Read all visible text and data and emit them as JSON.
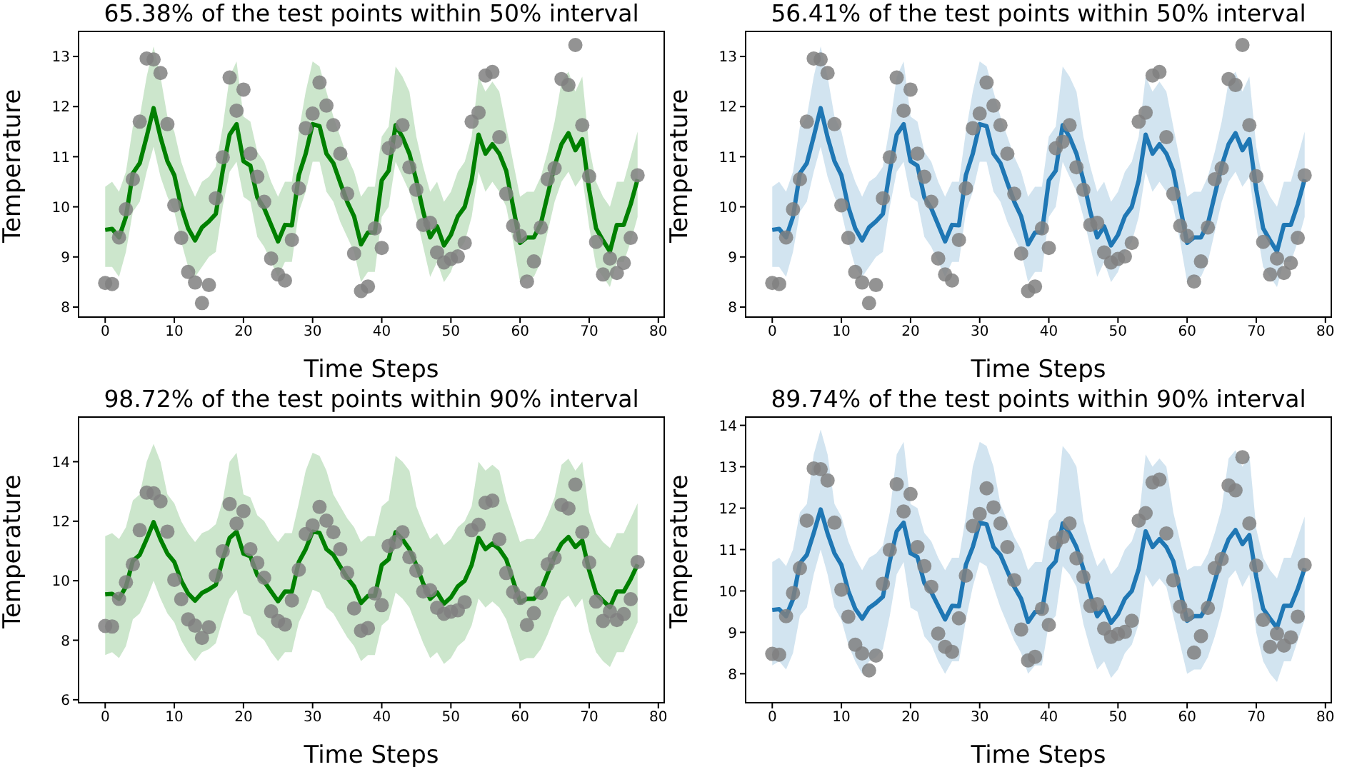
{
  "chart_data": [
    {
      "type": "line",
      "title": "65.38% of the test points within 50% interval",
      "xlabel": "Time Steps",
      "ylabel": "Temperature",
      "x": [
        0,
        1,
        2,
        3,
        4,
        5,
        6,
        7,
        8,
        9,
        10,
        11,
        12,
        13,
        14,
        15,
        16,
        17,
        18,
        19,
        20,
        21,
        22,
        23,
        24,
        25,
        26,
        27,
        28,
        29,
        30,
        31,
        32,
        33,
        34,
        35,
        36,
        37,
        38,
        39,
        40,
        41,
        42,
        43,
        44,
        45,
        46,
        47,
        48,
        49,
        50,
        51,
        52,
        53,
        54,
        55,
        56,
        57,
        58,
        59,
        60,
        61,
        62,
        63,
        64,
        65,
        66,
        67,
        68,
        69,
        70,
        71,
        72,
        73,
        74,
        75,
        76,
        77
      ],
      "xlim": [
        -3.85,
        80.85
      ],
      "xticks": [
        0,
        10,
        20,
        30,
        40,
        50,
        60,
        70,
        80
      ],
      "ylim": [
        7.8,
        13.5
      ],
      "yticks": [
        8,
        9,
        10,
        11,
        12,
        13
      ],
      "series": [
        {
          "color": "#008000",
          "values": [
            9.54,
            9.56,
            9.39,
            9.8,
            10.67,
            10.87,
            11.4,
            11.97,
            11.39,
            10.91,
            10.63,
            10.0,
            9.57,
            9.33,
            9.59,
            9.71,
            9.86,
            10.72,
            11.44,
            11.65,
            10.91,
            10.82,
            10.19,
            9.97,
            9.64,
            9.31,
            9.64,
            9.63,
            10.63,
            11.06,
            11.65,
            11.61,
            11.06,
            10.87,
            10.48,
            10.1,
            9.81,
            9.25,
            9.49,
            9.49,
            10.53,
            10.72,
            11.63,
            11.39,
            11.06,
            10.53,
            9.9,
            9.39,
            9.61,
            9.23,
            9.44,
            9.81,
            10.0,
            10.53,
            11.44,
            11.06,
            11.25,
            11.06,
            10.72,
            10.0,
            9.28,
            9.39,
            9.39,
            9.66,
            10.24,
            10.82,
            11.25,
            11.47,
            11.13,
            11.35,
            10.34,
            9.57,
            9.33,
            9.11,
            9.64,
            9.64,
            10.05,
            10.55
          ],
          "lower": [
            8.8,
            8.8,
            8.6,
            9.1,
            9.9,
            10.1,
            10.7,
            11.2,
            10.6,
            10.2,
            9.9,
            9.3,
            8.8,
            8.6,
            8.8,
            9.0,
            9.1,
            10.0,
            10.7,
            10.9,
            10.2,
            10.1,
            9.4,
            9.2,
            8.9,
            8.6,
            8.9,
            8.9,
            9.9,
            10.3,
            10.9,
            10.9,
            10.3,
            10.1,
            9.7,
            9.4,
            9.1,
            8.5,
            8.7,
            8.7,
            9.8,
            10.0,
            10.9,
            10.6,
            10.3,
            9.8,
            9.2,
            8.6,
            8.9,
            8.5,
            8.7,
            9.1,
            9.3,
            9.8,
            10.7,
            10.3,
            10.5,
            10.3,
            10.0,
            9.3,
            8.5,
            8.6,
            8.6,
            8.9,
            9.5,
            10.1,
            10.5,
            10.7,
            10.4,
            10.6,
            9.6,
            8.8,
            8.6,
            8.4,
            8.9,
            8.9,
            9.3,
            9.8
          ],
          "upper": [
            10.4,
            10.5,
            10.3,
            10.7,
            11.6,
            11.8,
            12.6,
            13.2,
            12.6,
            11.8,
            11.5,
            10.9,
            10.5,
            10.2,
            10.5,
            10.6,
            10.8,
            11.6,
            12.6,
            12.9,
            11.8,
            11.7,
            11.1,
            10.9,
            10.5,
            10.2,
            10.5,
            10.5,
            11.5,
            12.3,
            12.9,
            12.8,
            12.3,
            11.8,
            11.4,
            11.0,
            10.7,
            10.2,
            10.4,
            10.4,
            11.4,
            11.6,
            12.8,
            12.6,
            12.3,
            11.4,
            10.8,
            10.3,
            10.5,
            10.1,
            10.3,
            10.7,
            10.9,
            11.4,
            12.6,
            12.3,
            12.5,
            12.3,
            11.6,
            10.9,
            10.2,
            10.3,
            10.3,
            10.6,
            11.1,
            11.7,
            12.5,
            12.7,
            12.3,
            12.6,
            11.2,
            10.5,
            10.2,
            10.0,
            10.5,
            10.5,
            11.0,
            11.5
          ]
        },
        {
          "type": "scatter",
          "color": "#808080",
          "marker": "circle",
          "values": [
            8.48,
            8.46,
            9.39,
            9.95,
            10.55,
            11.7,
            12.96,
            12.94,
            12.67,
            11.65,
            10.03,
            9.38,
            8.7,
            8.49,
            8.08,
            8.44,
            10.17,
            10.99,
            12.58,
            11.92,
            12.34,
            11.06,
            10.6,
            10.1,
            8.97,
            8.65,
            8.53,
            9.34,
            10.37,
            11.57,
            11.86,
            12.48,
            12.02,
            11.63,
            11.06,
            10.26,
            9.07,
            8.32,
            8.41,
            9.57,
            9.18,
            11.17,
            11.3,
            11.63,
            10.79,
            10.34,
            9.64,
            9.68,
            9.09,
            8.89,
            8.96,
            9.01,
            9.28,
            11.7,
            11.88,
            12.62,
            12.69,
            11.39,
            10.26,
            9.62,
            9.42,
            8.51,
            8.91,
            9.59,
            10.55,
            10.77,
            12.55,
            12.43,
            13.23,
            11.63,
            10.61,
            9.3,
            8.65,
            8.97,
            8.68,
            8.88,
            9.38,
            10.63
          ]
        }
      ]
    },
    {
      "type": "line",
      "title": "56.41% of the test points within 50% interval",
      "xlabel": "Time Steps",
      "ylabel": "Temperature",
      "x": [
        0,
        1,
        2,
        3,
        4,
        5,
        6,
        7,
        8,
        9,
        10,
        11,
        12,
        13,
        14,
        15,
        16,
        17,
        18,
        19,
        20,
        21,
        22,
        23,
        24,
        25,
        26,
        27,
        28,
        29,
        30,
        31,
        32,
        33,
        34,
        35,
        36,
        37,
        38,
        39,
        40,
        41,
        42,
        43,
        44,
        45,
        46,
        47,
        48,
        49,
        50,
        51,
        52,
        53,
        54,
        55,
        56,
        57,
        58,
        59,
        60,
        61,
        62,
        63,
        64,
        65,
        66,
        67,
        68,
        69,
        70,
        71,
        72,
        73,
        74,
        75,
        76,
        77
      ],
      "xlim": [
        -3.85,
        80.85
      ],
      "xticks": [
        0,
        10,
        20,
        30,
        40,
        50,
        60,
        70,
        80
      ],
      "ylim": [
        7.8,
        13.5
      ],
      "yticks": [
        8,
        9,
        10,
        11,
        12,
        13
      ],
      "series": [
        {
          "color": "#1f77b4",
          "values": [
            9.54,
            9.56,
            9.39,
            9.8,
            10.67,
            10.87,
            11.4,
            11.97,
            11.39,
            10.91,
            10.63,
            10.0,
            9.57,
            9.33,
            9.59,
            9.71,
            9.86,
            10.72,
            11.44,
            11.65,
            10.91,
            10.82,
            10.19,
            9.97,
            9.64,
            9.31,
            9.64,
            9.63,
            10.63,
            11.06,
            11.65,
            11.61,
            11.06,
            10.87,
            10.48,
            10.1,
            9.81,
            9.25,
            9.49,
            9.49,
            10.53,
            10.72,
            11.63,
            11.39,
            11.06,
            10.53,
            9.9,
            9.39,
            9.61,
            9.23,
            9.44,
            9.81,
            10.0,
            10.53,
            11.44,
            11.06,
            11.25,
            11.06,
            10.72,
            10.0,
            9.28,
            9.39,
            9.39,
            9.66,
            10.24,
            10.82,
            11.25,
            11.47,
            11.13,
            11.35,
            10.34,
            9.57,
            9.33,
            9.11,
            9.64,
            9.64,
            10.05,
            10.55
          ],
          "lower": [
            8.8,
            8.8,
            8.6,
            9.1,
            9.9,
            10.1,
            10.7,
            11.2,
            10.6,
            10.2,
            9.9,
            9.3,
            8.8,
            8.6,
            8.8,
            9.0,
            9.1,
            10.0,
            10.7,
            10.9,
            10.2,
            10.1,
            9.4,
            9.2,
            8.9,
            8.6,
            8.9,
            8.9,
            9.9,
            10.3,
            10.9,
            10.9,
            10.3,
            10.1,
            9.7,
            9.4,
            9.1,
            8.5,
            8.7,
            8.7,
            9.8,
            10.0,
            10.9,
            10.6,
            10.3,
            9.8,
            9.2,
            8.6,
            8.9,
            8.5,
            8.7,
            9.1,
            9.3,
            9.8,
            10.7,
            10.3,
            10.5,
            10.3,
            10.0,
            9.3,
            8.5,
            8.6,
            8.6,
            8.9,
            9.5,
            10.1,
            10.5,
            10.7,
            10.4,
            10.6,
            9.6,
            8.8,
            8.6,
            8.4,
            8.9,
            8.9,
            9.3,
            9.8
          ],
          "upper": [
            10.4,
            10.5,
            10.3,
            10.7,
            11.6,
            11.8,
            12.6,
            13.2,
            12.6,
            11.8,
            11.5,
            10.9,
            10.5,
            10.2,
            10.5,
            10.6,
            10.8,
            11.6,
            12.6,
            12.9,
            11.8,
            11.7,
            11.1,
            10.9,
            10.5,
            10.2,
            10.5,
            10.5,
            11.5,
            12.3,
            12.9,
            12.8,
            12.3,
            11.8,
            11.4,
            11.0,
            10.7,
            10.2,
            10.4,
            10.4,
            11.4,
            11.6,
            12.8,
            12.6,
            12.3,
            11.4,
            10.8,
            10.3,
            10.5,
            10.1,
            10.3,
            10.7,
            10.9,
            11.4,
            12.6,
            12.3,
            12.5,
            12.3,
            11.6,
            10.9,
            10.2,
            10.3,
            10.3,
            10.6,
            11.1,
            11.7,
            12.5,
            12.7,
            12.3,
            12.6,
            11.2,
            10.5,
            10.2,
            10.0,
            10.5,
            10.5,
            11.0,
            11.5
          ]
        },
        {
          "type": "scatter",
          "color": "#808080",
          "marker": "circle",
          "values": [
            8.48,
            8.46,
            9.39,
            9.95,
            10.55,
            11.7,
            12.96,
            12.94,
            12.67,
            11.65,
            10.03,
            9.38,
            8.7,
            8.49,
            8.08,
            8.44,
            10.17,
            10.99,
            12.58,
            11.92,
            12.34,
            11.06,
            10.6,
            10.1,
            8.97,
            8.65,
            8.53,
            9.34,
            10.37,
            11.57,
            11.86,
            12.48,
            12.02,
            11.63,
            11.06,
            10.26,
            9.07,
            8.32,
            8.41,
            9.57,
            9.18,
            11.17,
            11.3,
            11.63,
            10.79,
            10.34,
            9.64,
            9.68,
            9.09,
            8.89,
            8.96,
            9.01,
            9.28,
            11.7,
            11.88,
            12.62,
            12.69,
            11.39,
            10.26,
            9.62,
            9.42,
            8.51,
            8.91,
            9.59,
            10.55,
            10.77,
            12.55,
            12.43,
            13.23,
            11.63,
            10.61,
            9.3,
            8.65,
            8.97,
            8.68,
            8.88,
            9.38,
            10.63
          ]
        }
      ]
    },
    {
      "type": "line",
      "title": "98.72% of the test points within 90% interval",
      "xlabel": "Time Steps",
      "ylabel": "Temperature",
      "x": [
        0,
        1,
        2,
        3,
        4,
        5,
        6,
        7,
        8,
        9,
        10,
        11,
        12,
        13,
        14,
        15,
        16,
        17,
        18,
        19,
        20,
        21,
        22,
        23,
        24,
        25,
        26,
        27,
        28,
        29,
        30,
        31,
        32,
        33,
        34,
        35,
        36,
        37,
        38,
        39,
        40,
        41,
        42,
        43,
        44,
        45,
        46,
        47,
        48,
        49,
        50,
        51,
        52,
        53,
        54,
        55,
        56,
        57,
        58,
        59,
        60,
        61,
        62,
        63,
        64,
        65,
        66,
        67,
        68,
        69,
        70,
        71,
        72,
        73,
        74,
        75,
        76,
        77
      ],
      "xlim": [
        -3.85,
        80.85
      ],
      "xticks": [
        0,
        10,
        20,
        30,
        40,
        50,
        60,
        70,
        80
      ],
      "ylim": [
        5.9,
        15.5
      ],
      "yticks": [
        6,
        8,
        10,
        12,
        14
      ],
      "series": [
        {
          "color": "#008000",
          "values": [
            9.54,
            9.56,
            9.39,
            9.8,
            10.67,
            10.87,
            11.4,
            11.97,
            11.39,
            10.91,
            10.63,
            10.0,
            9.57,
            9.33,
            9.59,
            9.71,
            9.86,
            10.72,
            11.44,
            11.65,
            10.91,
            10.82,
            10.19,
            9.97,
            9.64,
            9.31,
            9.64,
            9.63,
            10.63,
            11.06,
            11.65,
            11.61,
            11.06,
            10.87,
            10.48,
            10.1,
            9.81,
            9.25,
            9.49,
            9.49,
            10.53,
            10.72,
            11.63,
            11.39,
            11.06,
            10.53,
            9.9,
            9.39,
            9.61,
            9.23,
            9.44,
            9.81,
            10.0,
            10.53,
            11.44,
            11.06,
            11.25,
            11.06,
            10.72,
            10.0,
            9.28,
            9.39,
            9.39,
            9.66,
            10.24,
            10.82,
            11.25,
            11.47,
            11.13,
            11.35,
            10.34,
            9.57,
            9.33,
            9.11,
            9.64,
            9.64,
            10.05,
            10.55
          ],
          "lower": [
            7.5,
            7.6,
            7.4,
            7.8,
            8.7,
            8.9,
            9.4,
            10.0,
            9.4,
            8.9,
            8.6,
            8.0,
            7.6,
            7.3,
            7.6,
            7.7,
            7.9,
            8.7,
            9.4,
            9.7,
            8.9,
            8.8,
            8.2,
            8.0,
            7.6,
            7.3,
            7.6,
            7.6,
            8.6,
            9.1,
            9.7,
            9.6,
            9.1,
            8.9,
            8.5,
            8.1,
            7.8,
            7.3,
            7.5,
            7.5,
            8.5,
            8.7,
            9.6,
            9.4,
            9.1,
            8.5,
            7.9,
            7.4,
            7.6,
            7.2,
            7.4,
            7.8,
            8.0,
            8.5,
            9.4,
            9.1,
            9.3,
            9.1,
            8.7,
            8.0,
            7.3,
            7.4,
            7.4,
            7.7,
            8.2,
            8.8,
            9.3,
            9.5,
            9.1,
            9.4,
            8.3,
            7.6,
            7.3,
            7.1,
            7.6,
            7.6,
            8.1,
            8.6
          ],
          "upper": [
            11.5,
            11.6,
            11.4,
            11.8,
            12.7,
            12.9,
            14.0,
            14.6,
            14.0,
            12.9,
            12.6,
            12.0,
            11.6,
            11.3,
            11.6,
            11.7,
            11.9,
            12.7,
            14.0,
            14.3,
            12.9,
            12.8,
            12.2,
            12.0,
            11.6,
            11.3,
            11.6,
            11.6,
            12.6,
            13.7,
            14.3,
            14.2,
            13.7,
            12.9,
            12.5,
            12.1,
            11.8,
            11.3,
            11.5,
            11.5,
            12.5,
            12.7,
            14.2,
            14.0,
            13.7,
            12.5,
            11.9,
            11.4,
            11.6,
            11.2,
            11.4,
            11.8,
            12.0,
            12.5,
            14.0,
            13.7,
            13.9,
            13.7,
            12.7,
            12.0,
            11.3,
            11.4,
            11.4,
            11.7,
            12.2,
            12.8,
            13.9,
            14.1,
            13.7,
            14.0,
            12.3,
            11.6,
            11.3,
            11.1,
            11.6,
            11.6,
            12.1,
            12.6
          ]
        },
        {
          "type": "scatter",
          "color": "#808080",
          "marker": "circle",
          "values": [
            8.48,
            8.46,
            9.39,
            9.95,
            10.55,
            11.7,
            12.96,
            12.94,
            12.67,
            11.65,
            10.03,
            9.38,
            8.7,
            8.49,
            8.08,
            8.44,
            10.17,
            10.99,
            12.58,
            11.92,
            12.34,
            11.06,
            10.6,
            10.1,
            8.97,
            8.65,
            8.53,
            9.34,
            10.37,
            11.57,
            11.86,
            12.48,
            12.02,
            11.63,
            11.06,
            10.26,
            9.07,
            8.32,
            8.41,
            9.57,
            9.18,
            11.17,
            11.3,
            11.63,
            10.79,
            10.34,
            9.64,
            9.68,
            9.09,
            8.89,
            8.96,
            9.01,
            9.28,
            11.7,
            11.88,
            12.62,
            12.69,
            11.39,
            10.26,
            9.62,
            9.42,
            8.51,
            8.91,
            9.59,
            10.55,
            10.77,
            12.55,
            12.43,
            13.23,
            11.63,
            10.61,
            9.3,
            8.65,
            8.97,
            8.68,
            8.88,
            9.38,
            10.63
          ]
        }
      ]
    },
    {
      "type": "line",
      "title": "89.74% of the test points within 90% interval",
      "xlabel": "Time Steps",
      "ylabel": "Temperature",
      "x": [
        0,
        1,
        2,
        3,
        4,
        5,
        6,
        7,
        8,
        9,
        10,
        11,
        12,
        13,
        14,
        15,
        16,
        17,
        18,
        19,
        20,
        21,
        22,
        23,
        24,
        25,
        26,
        27,
        28,
        29,
        30,
        31,
        32,
        33,
        34,
        35,
        36,
        37,
        38,
        39,
        40,
        41,
        42,
        43,
        44,
        45,
        46,
        47,
        48,
        49,
        50,
        51,
        52,
        53,
        54,
        55,
        56,
        57,
        58,
        59,
        60,
        61,
        62,
        63,
        64,
        65,
        66,
        67,
        68,
        69,
        70,
        71,
        72,
        73,
        74,
        75,
        76,
        77
      ],
      "xlim": [
        -3.85,
        80.85
      ],
      "xticks": [
        0,
        10,
        20,
        30,
        40,
        50,
        60,
        70,
        80
      ],
      "ylim": [
        7.3,
        14.2
      ],
      "yticks": [
        8,
        9,
        10,
        11,
        12,
        13,
        14
      ],
      "series": [
        {
          "color": "#1f77b4",
          "values": [
            9.54,
            9.56,
            9.39,
            9.8,
            10.67,
            10.87,
            11.4,
            11.97,
            11.39,
            10.91,
            10.63,
            10.0,
            9.57,
            9.33,
            9.59,
            9.71,
            9.86,
            10.72,
            11.44,
            11.65,
            10.91,
            10.82,
            10.19,
            9.97,
            9.64,
            9.31,
            9.64,
            9.63,
            10.63,
            11.06,
            11.65,
            11.61,
            11.06,
            10.87,
            10.48,
            10.1,
            9.81,
            9.25,
            9.49,
            9.49,
            10.53,
            10.72,
            11.63,
            11.39,
            11.06,
            10.53,
            9.9,
            9.39,
            9.61,
            9.23,
            9.44,
            9.81,
            10.0,
            10.53,
            11.44,
            11.06,
            11.25,
            11.06,
            10.72,
            10.0,
            9.28,
            9.39,
            9.39,
            9.66,
            10.24,
            10.82,
            11.25,
            11.47,
            11.13,
            11.35,
            10.34,
            9.57,
            9.33,
            9.11,
            9.64,
            9.64,
            10.05,
            10.55
          ],
          "lower": [
            8.2,
            8.3,
            8.1,
            8.5,
            9.4,
            9.6,
            10.4,
            11.0,
            10.4,
            9.6,
            9.3,
            8.7,
            8.3,
            8.0,
            8.3,
            8.4,
            8.6,
            9.4,
            10.4,
            10.7,
            9.6,
            9.5,
            8.9,
            8.7,
            8.3,
            8.0,
            8.3,
            8.3,
            9.3,
            10.1,
            10.7,
            10.6,
            10.1,
            9.6,
            9.2,
            8.8,
            8.5,
            8.0,
            8.2,
            8.2,
            9.2,
            9.4,
            10.6,
            10.4,
            10.1,
            9.2,
            8.6,
            8.1,
            8.3,
            7.9,
            8.1,
            8.5,
            8.7,
            9.2,
            10.4,
            10.1,
            10.3,
            10.1,
            9.4,
            8.7,
            8.0,
            8.1,
            8.1,
            8.4,
            8.9,
            9.5,
            10.3,
            10.5,
            10.1,
            10.4,
            9.0,
            8.3,
            8.0,
            7.8,
            8.3,
            8.3,
            8.8,
            9.3
          ],
          "upper": [
            10.7,
            10.8,
            10.6,
            11.0,
            11.9,
            12.1,
            13.3,
            13.9,
            13.3,
            12.1,
            11.8,
            11.2,
            10.8,
            10.5,
            10.8,
            10.9,
            11.1,
            11.9,
            13.3,
            13.6,
            12.1,
            12.0,
            11.4,
            11.2,
            10.8,
            10.5,
            10.8,
            10.8,
            11.8,
            13.0,
            13.6,
            13.5,
            13.0,
            12.1,
            11.7,
            11.3,
            11.0,
            10.5,
            10.7,
            10.7,
            11.7,
            11.9,
            13.5,
            13.3,
            13.0,
            11.7,
            11.1,
            10.6,
            10.8,
            10.4,
            10.6,
            11.0,
            11.2,
            11.7,
            13.3,
            13.0,
            13.2,
            13.0,
            11.9,
            11.2,
            10.5,
            10.6,
            10.6,
            10.9,
            11.4,
            12.0,
            13.2,
            13.4,
            13.0,
            13.3,
            11.5,
            10.8,
            10.5,
            10.3,
            10.8,
            10.8,
            11.3,
            11.8
          ]
        },
        {
          "type": "scatter",
          "color": "#808080",
          "marker": "circle",
          "values": [
            8.48,
            8.46,
            9.39,
            9.95,
            10.55,
            11.7,
            12.96,
            12.94,
            12.67,
            11.65,
            10.03,
            9.38,
            8.7,
            8.49,
            8.08,
            8.44,
            10.17,
            10.99,
            12.58,
            11.92,
            12.34,
            11.06,
            10.6,
            10.1,
            8.97,
            8.65,
            8.53,
            9.34,
            10.37,
            11.57,
            11.86,
            12.48,
            12.02,
            11.63,
            11.06,
            10.26,
            9.07,
            8.32,
            8.41,
            9.57,
            9.18,
            11.17,
            11.3,
            11.63,
            10.79,
            10.34,
            9.64,
            9.68,
            9.09,
            8.89,
            8.96,
            9.01,
            9.28,
            11.7,
            11.88,
            12.62,
            12.69,
            11.39,
            10.26,
            9.62,
            9.42,
            8.51,
            8.91,
            9.59,
            10.55,
            10.77,
            12.55,
            12.43,
            13.23,
            11.63,
            10.61,
            9.3,
            8.65,
            8.97,
            8.68,
            8.88,
            9.38,
            10.63
          ]
        }
      ]
    }
  ]
}
